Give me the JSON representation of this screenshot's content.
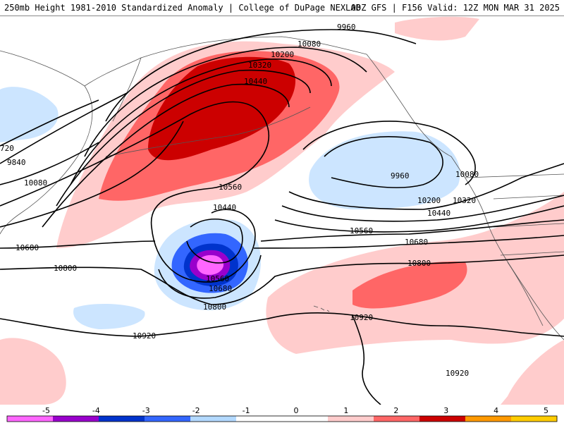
{
  "header": {
    "left_text": "250mb Height 1981-2010 Standardized Anomaly | College of DuPage NEXLAB",
    "right_text": "00Z GFS | F156 Valid: 12Z MON MAR 31 2025"
  },
  "contour_labels": {
    "l9960a": "9960",
    "l10080a": "10080",
    "l10200a": "10200",
    "l10320a": "10320",
    "l10440a": "10440",
    "l720": "720",
    "l9840": "9840",
    "l10080b": "10080",
    "l10560a": "10560",
    "l10680a": "10680",
    "l10440b": "10440",
    "l9960b": "9960",
    "l10080c": "10080",
    "l10200b": "10200",
    "l10320b": "10320",
    "l10440c": "10440",
    "l10560b": "10560",
    "l10680b": "10680",
    "l10800a": "10800",
    "l10560c": "10560",
    "l10680c": "10680",
    "l10800b": "10800",
    "l10800c": "10800",
    "l10920a": "10920",
    "l10920b": "10920",
    "l10920c": "10920"
  },
  "colorbar": {
    "ticks": [
      "-5",
      "-4",
      "-3",
      "-2",
      "-1",
      "0",
      "1",
      "2",
      "3",
      "4",
      "5"
    ],
    "colors": {
      "m5": "#ff66ff",
      "m4": "#9900cc",
      "m3": "#0033cc",
      "m2": "#3366ff",
      "m1": "#b3d9ff",
      "z": "#ffffff",
      "p1": "#ffcccc",
      "p2": "#ff6666",
      "p3": "#cc0000",
      "p4": "#ff9900",
      "p5": "#ffcc00"
    }
  },
  "colors": {
    "land_line": "#555555",
    "contour": "#000000",
    "neg1": "#cce5ff",
    "neg2": "#3366ff",
    "neg3": "#0033cc",
    "neg4": "#9900cc",
    "neg5": "#ff66ff",
    "pos1": "#ffcccc",
    "pos2": "#ff6666",
    "pos3": "#cc0000"
  }
}
